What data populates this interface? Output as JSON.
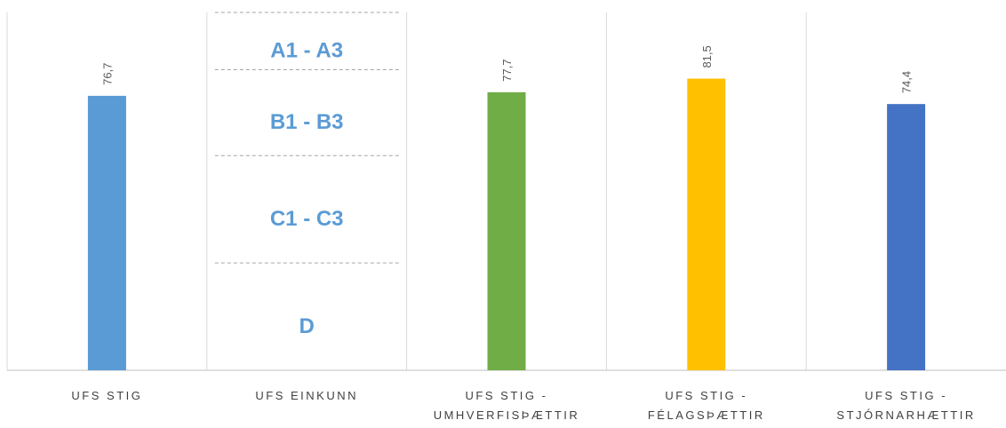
{
  "chart_data": {
    "type": "bar",
    "categories": [
      [
        "UFS  STIG"
      ],
      [
        "UFS EINKUNN"
      ],
      [
        "UFS STIG -",
        "UMHVERFISÞÆTTIR"
      ],
      [
        "UFS STIG -",
        "FÉLAGSÞÆTTIR"
      ],
      [
        "UFS STIG  -",
        "STJÓRNARHÆTTIR"
      ]
    ],
    "values": [
      76.7,
      null,
      77.7,
      81.5,
      74.4
    ],
    "value_labels": [
      "76,7",
      null,
      "77,7",
      "81,5",
      "74,4"
    ],
    "colors": [
      "#5b9bd5",
      null,
      "#70ad47",
      "#ffc000",
      "#4472c4"
    ],
    "ylim": [
      0,
      100
    ],
    "bands": [
      {
        "label": "A1 - A3",
        "range": [
          84,
          100
        ]
      },
      {
        "label": "B1 - B3",
        "range": [
          60,
          84
        ]
      },
      {
        "label": "C1 - C3",
        "range": [
          30,
          60
        ]
      },
      {
        "label": "D",
        "range": [
          0,
          30
        ]
      }
    ],
    "band_category": 1
  }
}
